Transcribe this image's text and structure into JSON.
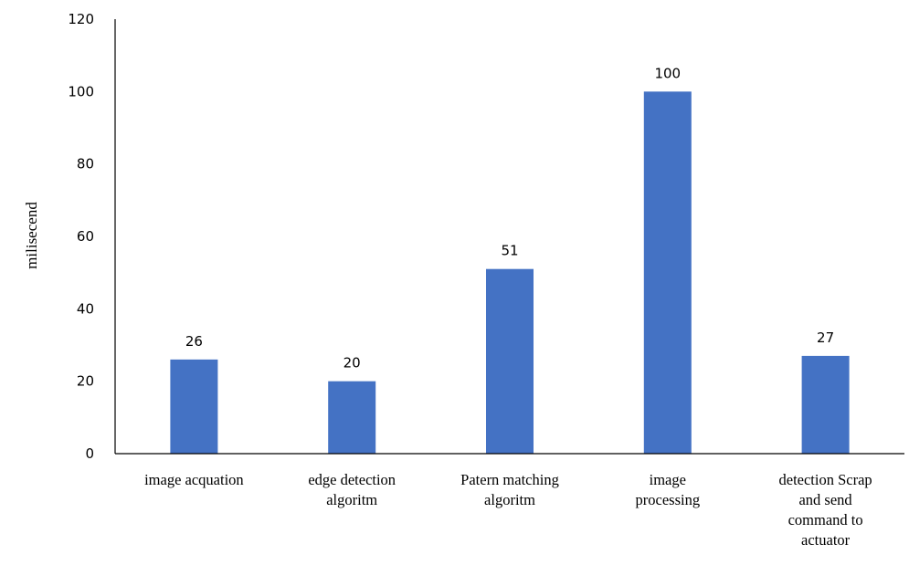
{
  "chart_data": {
    "type": "bar",
    "title": "",
    "xlabel": "",
    "ylabel": "milisecend",
    "ylim": [
      0,
      120
    ],
    "yticks": [
      0,
      20,
      40,
      60,
      80,
      100,
      120
    ],
    "categories": [
      [
        "image acquation"
      ],
      [
        "edge detection",
        "algoritm"
      ],
      [
        "Patern matching",
        "algoritm"
      ],
      [
        "image",
        "processing"
      ],
      [
        "detection Scrap",
        "and send",
        "command to",
        "actuator"
      ]
    ],
    "values": [
      26,
      20,
      51,
      100,
      27
    ],
    "bar_color": "#4472C4",
    "grid": false,
    "legend": "none"
  }
}
